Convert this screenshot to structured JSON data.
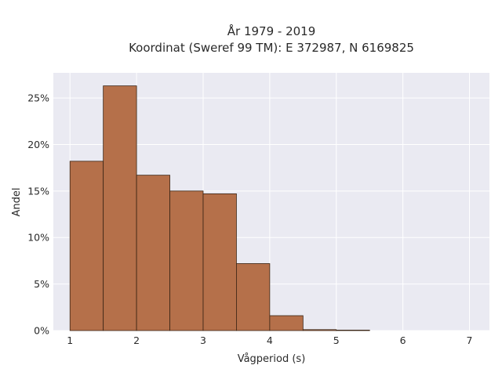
{
  "chart_data": {
    "type": "bar",
    "title_line1": "År 1979 - 2019",
    "title_line2": "Koordinat (Sweref 99 TM): E 372987, N 6169825",
    "xlabel": "Vågperiod (s)",
    "ylabel": "Andel",
    "xlim": [
      0.75,
      7.3
    ],
    "ylim": [
      0,
      0.277
    ],
    "x_ticks": [
      1,
      2,
      3,
      4,
      5,
      6,
      7
    ],
    "x_tick_labels": [
      "1",
      "2",
      "3",
      "4",
      "5",
      "6",
      "7"
    ],
    "y_ticks": [
      0,
      0.05,
      0.1,
      0.15,
      0.2,
      0.25
    ],
    "y_tick_labels": [
      "0%",
      "5%",
      "10%",
      "15%",
      "20%",
      "25%"
    ],
    "bins": [
      {
        "start": 1.0,
        "end": 1.5,
        "value": 0.182
      },
      {
        "start": 1.5,
        "end": 2.0,
        "value": 0.263
      },
      {
        "start": 2.0,
        "end": 2.5,
        "value": 0.167
      },
      {
        "start": 2.5,
        "end": 3.0,
        "value": 0.15
      },
      {
        "start": 3.0,
        "end": 3.5,
        "value": 0.147
      },
      {
        "start": 3.5,
        "end": 4.0,
        "value": 0.072
      },
      {
        "start": 4.0,
        "end": 4.5,
        "value": 0.016
      },
      {
        "start": 4.5,
        "end": 5.0,
        "value": 0.001
      },
      {
        "start": 5.0,
        "end": 5.5,
        "value": 0.0003
      }
    ],
    "grid": true,
    "colors": {
      "bar_fill": "#b5704a",
      "bar_edge": "#3a2414",
      "plot_bg": "#eaeaf2",
      "grid": "#ffffff"
    }
  }
}
